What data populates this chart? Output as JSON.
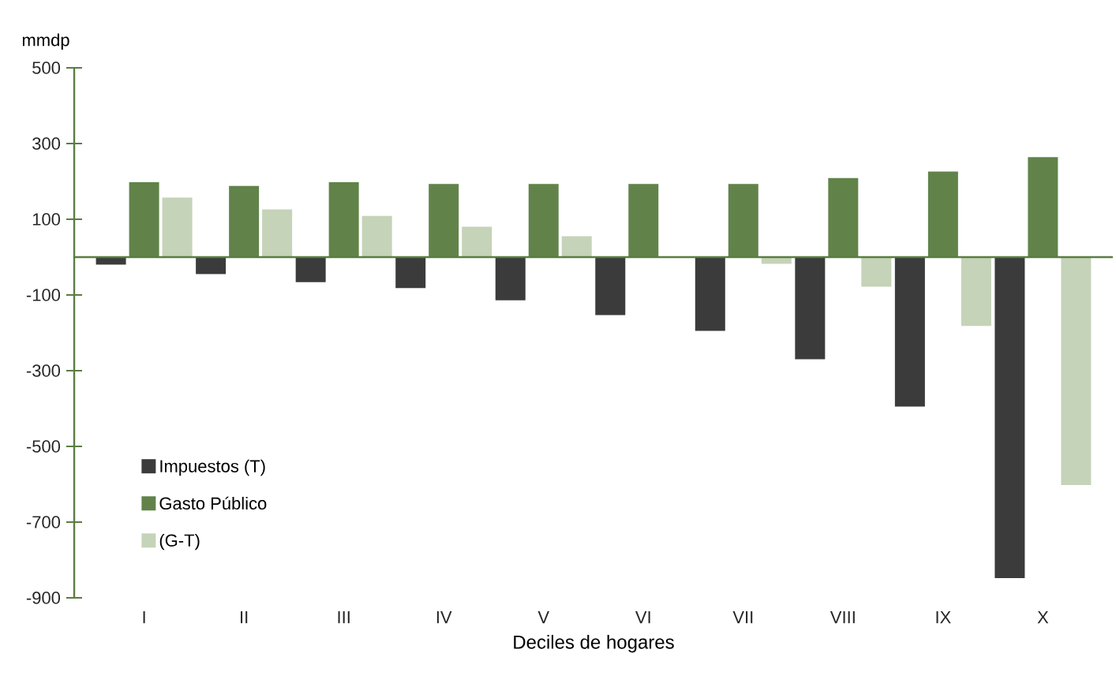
{
  "chart_data": {
    "type": "bar",
    "xlabel": "Deciles de hogares",
    "ylabel": "mmdp",
    "categories": [
      "I",
      "II",
      "III",
      "IV",
      "V",
      "VI",
      "VII",
      "VIII",
      "IX",
      "X"
    ],
    "series": [
      {
        "name": "Impuestos (T)",
        "color": "#3b3b3b",
        "values": [
          -20,
          -45,
          -66,
          -82,
          -114,
          -153,
          -195,
          -270,
          -395,
          -848
        ]
      },
      {
        "name": "Gasto Público",
        "color": "#61834a",
        "values": [
          198,
          188,
          198,
          193,
          193,
          193,
          193,
          209,
          226,
          264
        ]
      },
      {
        "name": "(G-T)",
        "color": "#c5d3b8",
        "values": [
          157,
          126,
          109,
          80,
          55,
          null,
          -18,
          -78,
          -182,
          -602
        ]
      }
    ],
    "ylim": [
      -900,
      500
    ],
    "yticks": [
      -900,
      -700,
      -500,
      -300,
      -100,
      100,
      300,
      500
    ],
    "ref_lines": [
      {
        "axis": "y",
        "value": 0,
        "color": "#5a7d42"
      }
    ],
    "grid": false,
    "legend": "bottom left"
  }
}
